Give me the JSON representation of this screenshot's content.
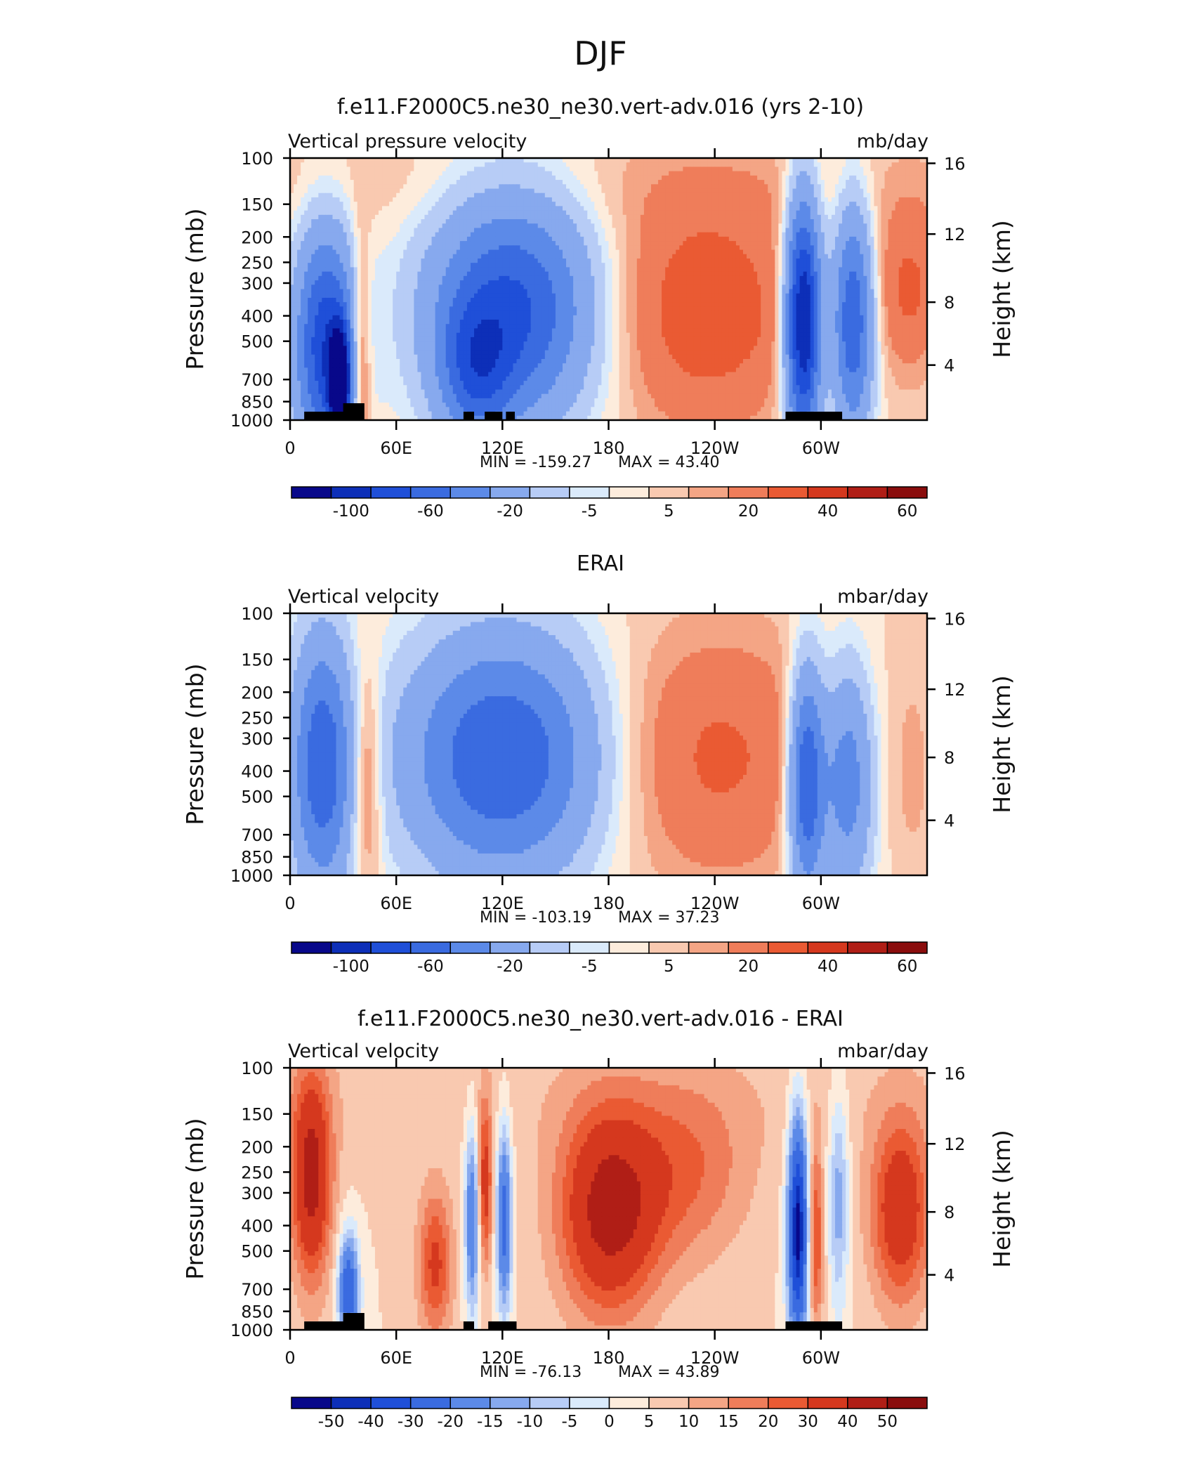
{
  "figure": {
    "title": "DJF"
  },
  "colors": {
    "cold": [
      "#08088a",
      "#0d2fb8",
      "#1f4fd8",
      "#3a6be0",
      "#5c8ae8",
      "#87a9ee",
      "#b7ccf6",
      "#daeafb"
    ],
    "warm": [
      "#fdecdc",
      "#f9c9b0",
      "#f4a585",
      "#ef7d5a",
      "#ea5a33",
      "#d5381e",
      "#b01e16",
      "#8a0d0d"
    ]
  },
  "chart_data": [
    {
      "type": "heatmap",
      "title": "f.e11.F2000C5.ne30_ne30.vert-adv.016 (yrs 2-10)",
      "left_label": "Vertical pressure velocity",
      "right_label": "mb/day",
      "ylabel": "Pressure (mb)",
      "y2label": "Height (km)",
      "xticks": [
        "0",
        "60E",
        "120E",
        "180",
        "120W",
        "60W"
      ],
      "yticks": [
        "100",
        "150",
        "200",
        "250",
        "300",
        "400",
        "500",
        "700",
        "850",
        "1000"
      ],
      "y2ticks": [
        "16",
        "12",
        "8",
        "4"
      ],
      "min_label": "MIN =  -159.27",
      "max_label": "MAX =   43.40",
      "colorbar_ticks": [
        "-100",
        "-60",
        "-20",
        "-5",
        "5",
        "20",
        "40",
        "60"
      ],
      "colorbar_levels": 16
    },
    {
      "type": "heatmap",
      "title": "ERAI",
      "left_label": "Vertical velocity",
      "right_label": "mbar/day",
      "ylabel": "Pressure (mb)",
      "y2label": "Height (km)",
      "xticks": [
        "0",
        "60E",
        "120E",
        "180",
        "120W",
        "60W"
      ],
      "yticks": [
        "100",
        "150",
        "200",
        "250",
        "300",
        "400",
        "500",
        "700",
        "850",
        "1000"
      ],
      "y2ticks": [
        "16",
        "12",
        "8",
        "4"
      ],
      "min_label": "MIN =  -103.19",
      "max_label": "MAX =   37.23",
      "colorbar_ticks": [
        "-100",
        "-60",
        "-20",
        "-5",
        "5",
        "20",
        "40",
        "60"
      ],
      "colorbar_levels": 16
    },
    {
      "type": "heatmap",
      "title": "f.e11.F2000C5.ne30_ne30.vert-adv.016 - ERAI",
      "left_label": "Vertical velocity",
      "right_label": "mbar/day",
      "ylabel": "Pressure (mb)",
      "y2label": "Height (km)",
      "xticks": [
        "0",
        "60E",
        "120E",
        "180",
        "120W",
        "60W"
      ],
      "yticks": [
        "100",
        "150",
        "200",
        "250",
        "300",
        "400",
        "500",
        "700",
        "850",
        "1000"
      ],
      "y2ticks": [
        "16",
        "12",
        "8",
        "4"
      ],
      "min_label": "MIN =  -76.13",
      "max_label": "MAX =   43.89",
      "colorbar_ticks": [
        "-50",
        "-40",
        "-30",
        "-20",
        "-15",
        "-10",
        "-5",
        "0",
        "5",
        "10",
        "15",
        "20",
        "30",
        "40",
        "50"
      ],
      "colorbar_levels": 16
    }
  ]
}
